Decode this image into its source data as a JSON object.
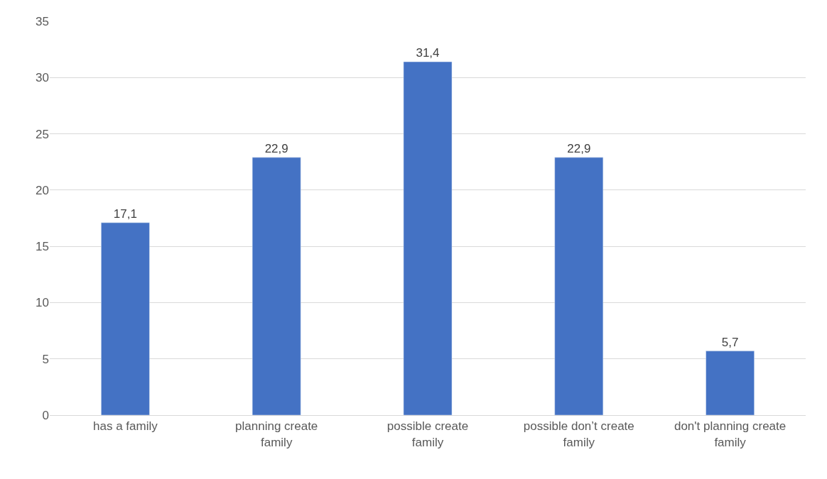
{
  "chart_data": {
    "type": "bar",
    "categories": [
      "has a family",
      "planning create family",
      "possible create family",
      "possible don’t create family",
      "don't planning create family"
    ],
    "values": [
      17.1,
      22.9,
      31.4,
      22.9,
      5.7
    ],
    "value_labels": [
      "17,1",
      "22,9",
      "31,4",
      "22,9",
      "5,7"
    ],
    "color": "#4472c4",
    "ylim": [
      0,
      35
    ],
    "yticks": [
      0,
      5,
      10,
      15,
      20,
      25,
      30,
      35
    ],
    "grid": "y",
    "legend": false
  }
}
